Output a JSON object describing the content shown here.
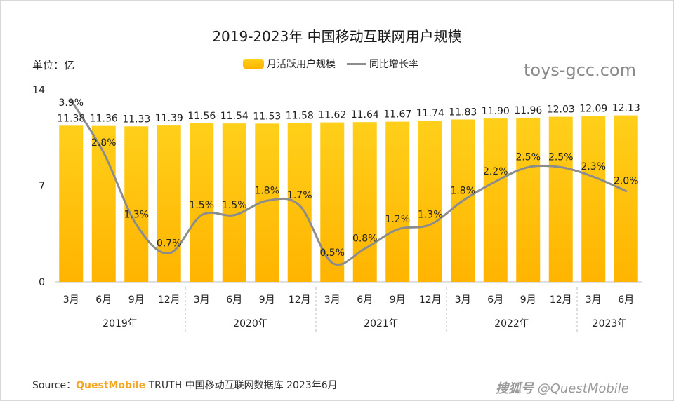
{
  "header": {
    "title": "2019-2023年 中国移动互联网用户规模",
    "unit": "单位：亿"
  },
  "legend": {
    "bar_label": "月活跃用户规模",
    "line_label": "同比增长率"
  },
  "watermark": "toys-gcc.com",
  "footer": {
    "source_prefix": "Source：",
    "brand": "QuestMobile",
    "source_text": "TRUTH 中国移动互联网数据库 2023年6月"
  },
  "credit": {
    "logo": "搜狐号",
    "handle": "@QuestMobile"
  },
  "colors": {
    "bar_top": "#ffcf1a",
    "bar_bottom": "#ffb400",
    "line": "#8c8c8c"
  },
  "chart_data": {
    "type": "bar",
    "title": "2019-2023年 中国移动互联网用户规模",
    "ylabel": "单位：亿",
    "ylim": [
      0,
      14
    ],
    "yticks": [
      "0",
      "7",
      "14"
    ],
    "categories": [
      "3月",
      "6月",
      "9月",
      "12月",
      "3月",
      "6月",
      "9月",
      "12月",
      "3月",
      "6月",
      "9月",
      "12月",
      "3月",
      "6月",
      "9月",
      "12月",
      "3月",
      "6月"
    ],
    "years": [
      "2019年",
      "2020年",
      "2021年",
      "2022年",
      "2023年"
    ],
    "year_groups": [
      4,
      4,
      4,
      4,
      2
    ],
    "series": [
      {
        "name": "月活跃用户规模",
        "type": "bar",
        "values": [
          11.38,
          11.36,
          11.33,
          11.39,
          11.56,
          11.54,
          11.53,
          11.58,
          11.62,
          11.64,
          11.67,
          11.74,
          11.83,
          11.9,
          11.96,
          12.03,
          12.09,
          12.13
        ],
        "labels": [
          "11.38",
          "11.36",
          "11.33",
          "11.39",
          "11.56",
          "11.54",
          "11.53",
          "11.58",
          "11.62",
          "11.64",
          "11.67",
          "11.74",
          "11.83",
          "11.90",
          "11.96",
          "12.03",
          "12.09",
          "12.13"
        ]
      },
      {
        "name": "同比增长率",
        "type": "line",
        "values": [
          3.9,
          2.8,
          1.3,
          0.7,
          1.5,
          1.5,
          1.8,
          1.7,
          0.5,
          0.8,
          1.2,
          1.3,
          1.8,
          2.2,
          2.5,
          2.5,
          2.3,
          2.0
        ],
        "labels": [
          "3.9%",
          "2.8%",
          "1.3%",
          "0.7%",
          "1.5%",
          "1.5%",
          "1.8%",
          "1.7%",
          "0.5%",
          "0.8%",
          "1.2%",
          "1.3%",
          "1.8%",
          "2.2%",
          "2.5%",
          "2.5%",
          "2.3%",
          "2.0%"
        ]
      }
    ]
  }
}
